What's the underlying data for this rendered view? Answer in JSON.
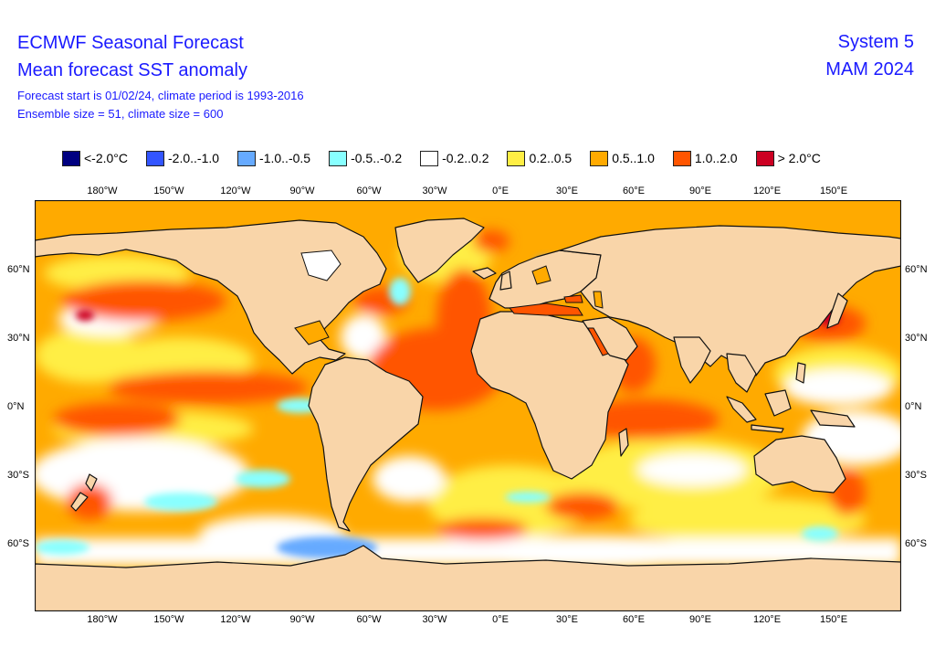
{
  "header": {
    "title1": "ECMWF Seasonal Forecast",
    "title2": "Mean forecast SST anomaly",
    "subtitle1": "Forecast start is 01/02/24, climate period is 1993-2016",
    "subtitle2": "Ensemble size = 51, climate size = 600",
    "system": "System 5",
    "season": "MAM 2024"
  },
  "legend": [
    {
      "label": "<-2.0°C",
      "color": "#000080"
    },
    {
      "label": "-2.0..-1.0",
      "color": "#3355ff"
    },
    {
      "label": "-1.0..-0.5",
      "color": "#66aaff"
    },
    {
      "label": "-0.5..-0.2",
      "color": "#88ffff"
    },
    {
      "label": "-0.2..0.2",
      "color": "#ffffff"
    },
    {
      "label": "0.2..0.5",
      "color": "#ffee44"
    },
    {
      "label": "0.5..1.0",
      "color": "#ffaa00"
    },
    {
      "label": "1.0..2.0",
      "color": "#ff5500"
    },
    {
      "label": "> 2.0°C",
      "color": "#cc0022"
    }
  ],
  "lon_labels": [
    "180°W",
    "150°W",
    "120°W",
    "90°W",
    "60°W",
    "30°W",
    "0°E",
    "30°E",
    "60°E",
    "90°E",
    "120°E",
    "150°E"
  ],
  "lat_labels": [
    "60°N",
    "30°N",
    "0°N",
    "30°S",
    "60°S"
  ],
  "colors": {
    "land": "#f9d5a9",
    "ocean_warm_light": "#ffee44",
    "ocean_warm_mid": "#ffaa00",
    "ocean_warm_strong": "#ff5500",
    "ocean_hot": "#cc0022",
    "ocean_neutral": "#ffffff",
    "ocean_cool_light": "#88ffff",
    "ocean_cool_mid": "#66aaff",
    "coast": "#111111"
  }
}
